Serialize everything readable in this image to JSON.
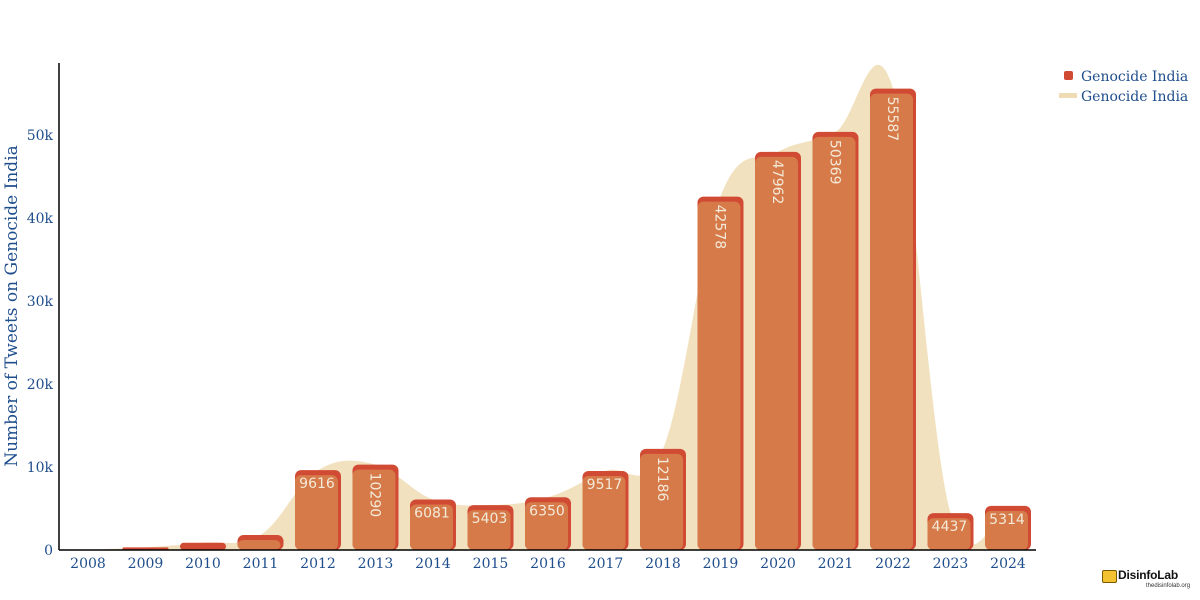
{
  "chart_data": {
    "type": "bar",
    "title": "",
    "xlabel": "",
    "ylabel": "Number of Tweets on Genocide India",
    "ylim": [
      0,
      58500
    ],
    "yticks": [
      0,
      10000,
      20000,
      30000,
      40000,
      50000
    ],
    "ytick_labels": [
      "0",
      "10k",
      "20k",
      "30k",
      "40k",
      "50k"
    ],
    "categories": [
      "2008",
      "2009",
      "2010",
      "2011",
      "2012",
      "2013",
      "2014",
      "2015",
      "2016",
      "2017",
      "2018",
      "2019",
      "2020",
      "2021",
      "2022",
      "2023",
      "2024"
    ],
    "series": [
      {
        "name": "Genocide India",
        "kind": "bar",
        "color": "#d14b34",
        "values": [
          40,
          320,
          870,
          1800,
          9616,
          10290,
          6081,
          5403,
          6350,
          9517,
          12186,
          42578,
          47962,
          50369,
          55587,
          4437,
          5314
        ],
        "value_labels": [
          "",
          "",
          "",
          "",
          "9616",
          "10290",
          "6081",
          "5403",
          "6350",
          "9517",
          "12186",
          "42578",
          "47962",
          "50369",
          "55587",
          "4437",
          "5314"
        ]
      },
      {
        "name": "Genocide India",
        "kind": "area",
        "color": "#f0dcb4",
        "values": [
          40,
          320,
          870,
          1800,
          9616,
          10290,
          6081,
          5403,
          6350,
          9517,
          12186,
          42578,
          47962,
          50369,
          55587,
          4437,
          5314
        ]
      }
    ],
    "legend": {
      "position": "top-right",
      "entries": [
        "Genocide India",
        "Genocide India"
      ]
    },
    "grid": false,
    "colors": {
      "bar_outline": "#d14b34",
      "bar_fill": "#d67a4a",
      "area": "#f0dcb4",
      "axis_text": "#1f4e8c",
      "value_text": "#f3ead8"
    }
  },
  "logo": {
    "name": "DisinfoLab",
    "url": "thedisinfolab.org"
  }
}
